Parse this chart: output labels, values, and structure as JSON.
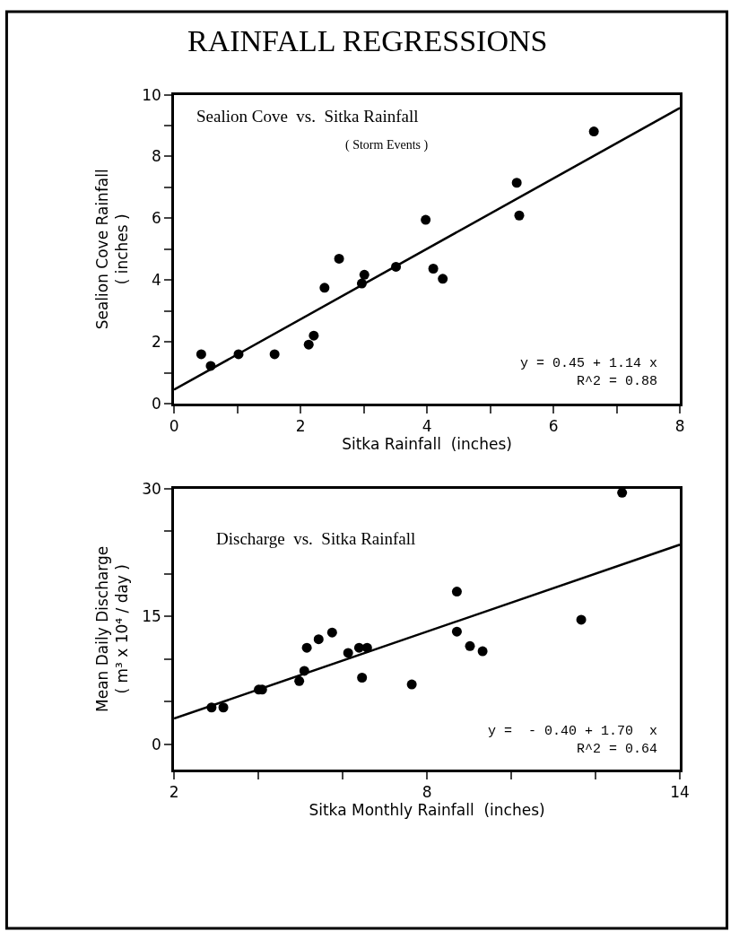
{
  "chart_data": [
    {
      "type": "scatter",
      "title": "Sealion Cove  vs.  Sitka Rainfall",
      "subtitle": "( Storm Events )",
      "xlabel": "Sitka Rainfall  (inches)",
      "ylabel": "Sealion Cove Rainfall\n( inches )",
      "annotations": [
        "RAINFALL REGRESSIONS",
        "y = 0.45 + 1.14 x\nR^2 = 0.88"
      ],
      "series": [
        {
          "color": "#000000",
          "marker": "circle",
          "x": [
            0.43,
            0.58,
            1.02,
            1.59,
            2.13,
            2.21,
            2.38,
            2.61,
            2.97,
            3.01,
            3.51,
            3.98,
            4.1,
            4.25,
            5.42,
            5.46,
            6.64
          ],
          "values": [
            1.6,
            1.22,
            1.6,
            1.6,
            1.91,
            2.2,
            3.75,
            4.69,
            3.89,
            4.17,
            4.43,
            5.95,
            4.37,
            4.04,
            7.15,
            6.09,
            8.81
          ]
        },
        {
          "type": "line",
          "color": "#000000",
          "line_style": "solid",
          "x": [
            0,
            8
          ],
          "values": [
            0.45,
            9.57
          ]
        }
      ],
      "xlim": [
        0,
        8
      ],
      "xticks": [
        0,
        {
          "value": 1,
          "label": null
        },
        2,
        {
          "value": 3,
          "label": null
        },
        4,
        {
          "value": 5,
          "label": null
        },
        6,
        {
          "value": 7,
          "label": null
        },
        8
      ],
      "ylim": [
        0,
        10
      ],
      "yticks": [
        0,
        {
          "value": 1,
          "label": null
        },
        2,
        {
          "value": 3,
          "label": null
        },
        4,
        {
          "value": 5,
          "label": null
        },
        6,
        {
          "value": 7,
          "label": null
        },
        8,
        {
          "value": 9,
          "label": null
        },
        10
      ],
      "grid": false
    },
    {
      "type": "scatter",
      "title": "Discharge  vs.  Sitka Rainfall",
      "xlabel": "Sitka Monthly Rainfall  (inches)",
      "ylabel": "Mean Daily Discharge\n( m³ x 10⁴ / day )",
      "annotations": [
        "y =  - 0.40 + 1.70  x\nR^2 = 0.64"
      ],
      "series": [
        {
          "color": "#000000",
          "marker": "circle",
          "x": [
            2.89,
            3.17,
            4.01,
            4.09,
            4.97,
            5.09,
            5.15,
            5.43,
            5.75,
            6.13,
            6.39,
            6.58,
            6.46,
            7.64,
            8.71,
            8.71,
            9.02,
            9.32,
            11.66,
            12.63
          ],
          "values": [
            4.3,
            4.3,
            6.4,
            6.4,
            7.4,
            8.6,
            11.3,
            12.3,
            13.1,
            10.7,
            11.3,
            11.3,
            7.8,
            7.0,
            17.9,
            13.2,
            11.5,
            10.9,
            14.6,
            29.5
          ]
        },
        {
          "type": "line",
          "color": "#000000",
          "line_style": "solid",
          "x": [
            2,
            14
          ],
          "values": [
            3.0,
            23.4
          ]
        }
      ],
      "xlim": [
        2,
        14
      ],
      "xticks": [
        2,
        {
          "value": 4,
          "label": null
        },
        {
          "value": 6,
          "label": null
        },
        8,
        {
          "value": 10,
          "label": null
        },
        {
          "value": 12,
          "label": null
        },
        14
      ],
      "ylim": [
        -3,
        30
      ],
      "yticks": [
        0,
        {
          "value": 5,
          "label": null
        },
        {
          "value": 10,
          "label": null
        },
        15,
        {
          "value": 20,
          "label": null
        },
        {
          "value": 25,
          "label": null
        },
        30
      ],
      "grid": false
    }
  ]
}
